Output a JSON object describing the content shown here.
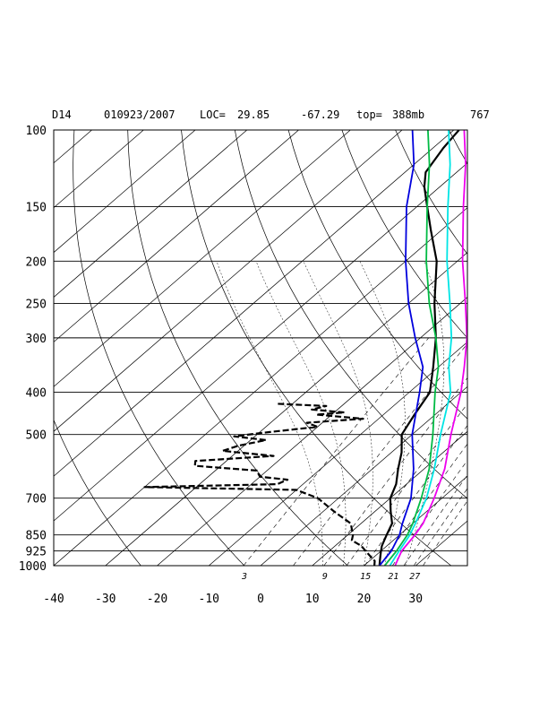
{
  "chart_data": {
    "type": "line",
    "header": {
      "station": "D14",
      "datetime": "010923/2007",
      "loc_label": "LOC=",
      "lat": "29.85",
      "lon": "-67.29",
      "top_label": "top=",
      "top": "388mb",
      "number": "767"
    },
    "pressure_ticks": [
      100,
      150,
      200,
      250,
      300,
      400,
      500,
      700,
      850,
      925,
      1000
    ],
    "temp_ticks": [
      -40,
      -30,
      -20,
      -10,
      0,
      10,
      20,
      30
    ],
    "plim": [
      1000,
      100
    ],
    "tlim": [
      -40,
      40
    ],
    "mixing_ratio_labels": [
      "3",
      "9",
      "15",
      "21",
      "27"
    ],
    "series": [
      {
        "color": "#000000",
        "dashed": false,
        "points": [
          [
            1000,
            23
          ],
          [
            975,
            22
          ],
          [
            950,
            21
          ],
          [
            925,
            20
          ],
          [
            900,
            19
          ],
          [
            850,
            17.5
          ],
          [
            800,
            16
          ],
          [
            750,
            13
          ],
          [
            700,
            10
          ],
          [
            650,
            8
          ],
          [
            600,
            5
          ],
          [
            550,
            2
          ],
          [
            500,
            -2
          ],
          [
            450,
            -4
          ],
          [
            400,
            -6
          ],
          [
            350,
            -11
          ],
          [
            300,
            -17
          ],
          [
            250,
            -25
          ],
          [
            200,
            -34
          ],
          [
            170,
            -42
          ],
          [
            150,
            -48
          ],
          [
            135,
            -53
          ],
          [
            125,
            -56
          ],
          [
            110,
            -58
          ],
          [
            100,
            -59
          ]
        ]
      },
      {
        "color": "#000000",
        "dashed": true,
        "points": [
          [
            1000,
            22
          ],
          [
            975,
            21
          ],
          [
            950,
            19
          ],
          [
            925,
            17
          ],
          [
            900,
            15
          ],
          [
            875,
            12
          ],
          [
            850,
            11
          ],
          [
            800,
            8
          ],
          [
            750,
            2
          ],
          [
            700,
            -4
          ],
          [
            670,
            -10
          ],
          [
            660,
            -40
          ],
          [
            650,
            -15
          ],
          [
            635,
            -14
          ],
          [
            625,
            -20
          ],
          [
            605,
            -22
          ],
          [
            590,
            -35
          ],
          [
            575,
            -36
          ],
          [
            560,
            -22
          ],
          [
            545,
            -33
          ],
          [
            530,
            -31
          ],
          [
            515,
            -27
          ],
          [
            505,
            -34
          ],
          [
            495,
            -29
          ],
          [
            480,
            -20
          ],
          [
            470,
            -23
          ],
          [
            460,
            -13
          ],
          [
            455,
            -18
          ],
          [
            450,
            -23
          ],
          [
            445,
            -18
          ],
          [
            438,
            -25
          ],
          [
            430,
            -23
          ],
          [
            425,
            -33
          ]
        ]
      },
      {
        "color": "#0000dd",
        "dashed": false,
        "points": [
          [
            1000,
            23
          ],
          [
            925,
            22
          ],
          [
            850,
            20
          ],
          [
            800,
            18
          ],
          [
            700,
            14
          ],
          [
            600,
            8
          ],
          [
            500,
            0
          ],
          [
            400,
            -8
          ],
          [
            350,
            -13
          ],
          [
            300,
            -21
          ],
          [
            250,
            -30
          ],
          [
            200,
            -40
          ],
          [
            150,
            -52
          ],
          [
            120,
            -60
          ],
          [
            100,
            -68
          ]
        ]
      },
      {
        "color": "#00bb44",
        "dashed": false,
        "points": [
          [
            1000,
            24
          ],
          [
            925,
            23
          ],
          [
            850,
            21.5
          ],
          [
            800,
            20
          ],
          [
            700,
            16
          ],
          [
            600,
            11
          ],
          [
            500,
            4
          ],
          [
            400,
            -5
          ],
          [
            350,
            -10
          ],
          [
            300,
            -17
          ],
          [
            250,
            -26
          ],
          [
            200,
            -36
          ],
          [
            150,
            -48
          ],
          [
            120,
            -57
          ],
          [
            100,
            -65
          ]
        ]
      },
      {
        "color": "#00e5e5",
        "dashed": false,
        "points": [
          [
            1000,
            25
          ],
          [
            925,
            23.5
          ],
          [
            850,
            22
          ],
          [
            800,
            20.5
          ],
          [
            700,
            17
          ],
          [
            600,
            12
          ],
          [
            500,
            5.5
          ],
          [
            400,
            -2
          ],
          [
            350,
            -8
          ],
          [
            300,
            -14
          ],
          [
            250,
            -22
          ],
          [
            200,
            -32
          ],
          [
            150,
            -44
          ],
          [
            120,
            -53
          ],
          [
            100,
            -61
          ]
        ]
      },
      {
        "color": "#ee00ee",
        "dashed": false,
        "points": [
          [
            1000,
            26
          ],
          [
            925,
            24
          ],
          [
            850,
            23
          ],
          [
            800,
            22
          ],
          [
            700,
            18.5
          ],
          [
            600,
            14
          ],
          [
            500,
            7.5
          ],
          [
            400,
            0
          ],
          [
            350,
            -5
          ],
          [
            300,
            -11
          ],
          [
            250,
            -19
          ],
          [
            200,
            -29
          ],
          [
            150,
            -41
          ],
          [
            120,
            -50
          ],
          [
            100,
            -58
          ]
        ]
      }
    ]
  }
}
